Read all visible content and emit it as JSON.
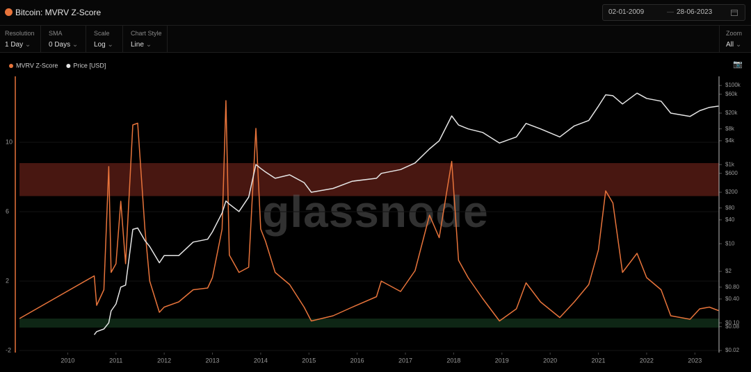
{
  "header": {
    "title": "Bitcoin: MVRV Z-Score",
    "date_from": "02-01-2009",
    "date_to": "28-06-2023"
  },
  "toolbar": [
    {
      "label": "Resolution",
      "value": "1 Day"
    },
    {
      "label": "SMA",
      "value": "0 Days"
    },
    {
      "label": "Scale",
      "value": "Log"
    },
    {
      "label": "Chart Style",
      "value": "Line"
    }
  ],
  "zoom": {
    "label": "Zoom",
    "value": "All"
  },
  "chart_data": {
    "type": "line",
    "watermark": "glassnode",
    "x": [
      2009.0,
      2010.55,
      2010.6,
      2010.75,
      2010.85,
      2010.9,
      2011.0,
      2011.1,
      2011.2,
      2011.35,
      2011.45,
      2011.6,
      2011.7,
      2011.9,
      2012.0,
      2012.3,
      2012.6,
      2012.9,
      2013.0,
      2013.2,
      2013.28,
      2013.35,
      2013.55,
      2013.75,
      2013.9,
      2014.0,
      2014.1,
      2014.3,
      2014.6,
      2014.9,
      2015.05,
      2015.5,
      2015.9,
      2016.4,
      2016.5,
      2016.9,
      2017.2,
      2017.5,
      2017.7,
      2017.96,
      2018.1,
      2018.3,
      2018.6,
      2018.95,
      2019.3,
      2019.5,
      2019.8,
      2020.2,
      2020.5,
      2020.8,
      2021.0,
      2021.15,
      2021.3,
      2021.5,
      2021.8,
      2022.0,
      2022.3,
      2022.5,
      2022.9,
      2023.1,
      2023.3,
      2023.49
    ],
    "series": [
      {
        "name": "MVRV Z-Score",
        "color": "#e8743b",
        "axis": "y",
        "values": [
          -0.16,
          2.3,
          0.6,
          1.5,
          8.6,
          2.5,
          3.0,
          6.6,
          3.0,
          11.0,
          11.1,
          5.0,
          2.0,
          0.2,
          0.5,
          0.8,
          1.5,
          1.6,
          2.2,
          5.0,
          12.4,
          3.5,
          2.5,
          2.8,
          10.8,
          5.0,
          4.3,
          2.5,
          1.8,
          0.5,
          -0.3,
          0.0,
          0.5,
          1.1,
          2.0,
          1.4,
          2.6,
          5.8,
          4.5,
          8.9,
          3.2,
          2.2,
          1.0,
          -0.3,
          0.4,
          1.9,
          0.8,
          -0.1,
          0.8,
          1.8,
          3.8,
          7.2,
          6.5,
          2.5,
          3.6,
          2.2,
          1.5,
          0.0,
          -0.2,
          0.4,
          0.5,
          0.3
        ]
      },
      {
        "name": "Price [USD]",
        "color": "#e6e6e6",
        "axis": "y2",
        "values": [
          null,
          0.05,
          0.06,
          0.07,
          0.1,
          0.2,
          0.3,
          0.8,
          0.9,
          23,
          25,
          12,
          8.5,
          3.3,
          5,
          5,
          11,
          13,
          20,
          60,
          120,
          100,
          65,
          150,
          1000,
          800,
          650,
          450,
          550,
          350,
          200,
          250,
          380,
          450,
          600,
          750,
          1100,
          2500,
          4000,
          17000,
          10000,
          8000,
          6500,
          3500,
          5000,
          11000,
          8000,
          5000,
          9500,
          13000,
          30000,
          58000,
          55000,
          34000,
          64000,
          47000,
          40000,
          20000,
          16500,
          23000,
          28000,
          30000
        ]
      }
    ],
    "zones": [
      {
        "from": 6.9,
        "to": 8.8,
        "color": "rgba(190,60,45,0.38)"
      },
      {
        "from": -0.68,
        "to": -0.16,
        "color": "rgba(40,110,60,0.35)"
      }
    ],
    "xlim": [
      2009.0,
      2023.5
    ],
    "xticks": [
      2010,
      2011,
      2012,
      2013,
      2014,
      2015,
      2016,
      2017,
      2018,
      2019,
      2020,
      2021,
      2022,
      2023
    ],
    "ylim": [
      -2,
      13.8
    ],
    "yticks": [
      -2,
      2,
      6,
      10
    ],
    "y2lim": [
      0.02,
      170000
    ],
    "y2log": true,
    "y2ticks": [
      {
        "value": 0.02,
        "label": "$0.02"
      },
      {
        "value": 0.08,
        "label": "$0.08"
      },
      {
        "value": 0.1,
        "label": "$0.10"
      },
      {
        "value": 0.4,
        "label": "$0.40"
      },
      {
        "value": 0.8,
        "label": "$0.80"
      },
      {
        "value": 2,
        "label": "$2"
      },
      {
        "value": 10,
        "label": "$10"
      },
      {
        "value": 40,
        "label": "$40"
      },
      {
        "value": 80,
        "label": "$80"
      },
      {
        "value": 200,
        "label": "$200"
      },
      {
        "value": 600,
        "label": "$600"
      },
      {
        "value": 1000,
        "label": "$1k"
      },
      {
        "value": 4000,
        "label": "$4k"
      },
      {
        "value": 8000,
        "label": "$8k"
      },
      {
        "value": 20000,
        "label": "$20k"
      },
      {
        "value": 60000,
        "label": "$60k"
      },
      {
        "value": 100000,
        "label": "$100k"
      }
    ],
    "grid": true
  }
}
